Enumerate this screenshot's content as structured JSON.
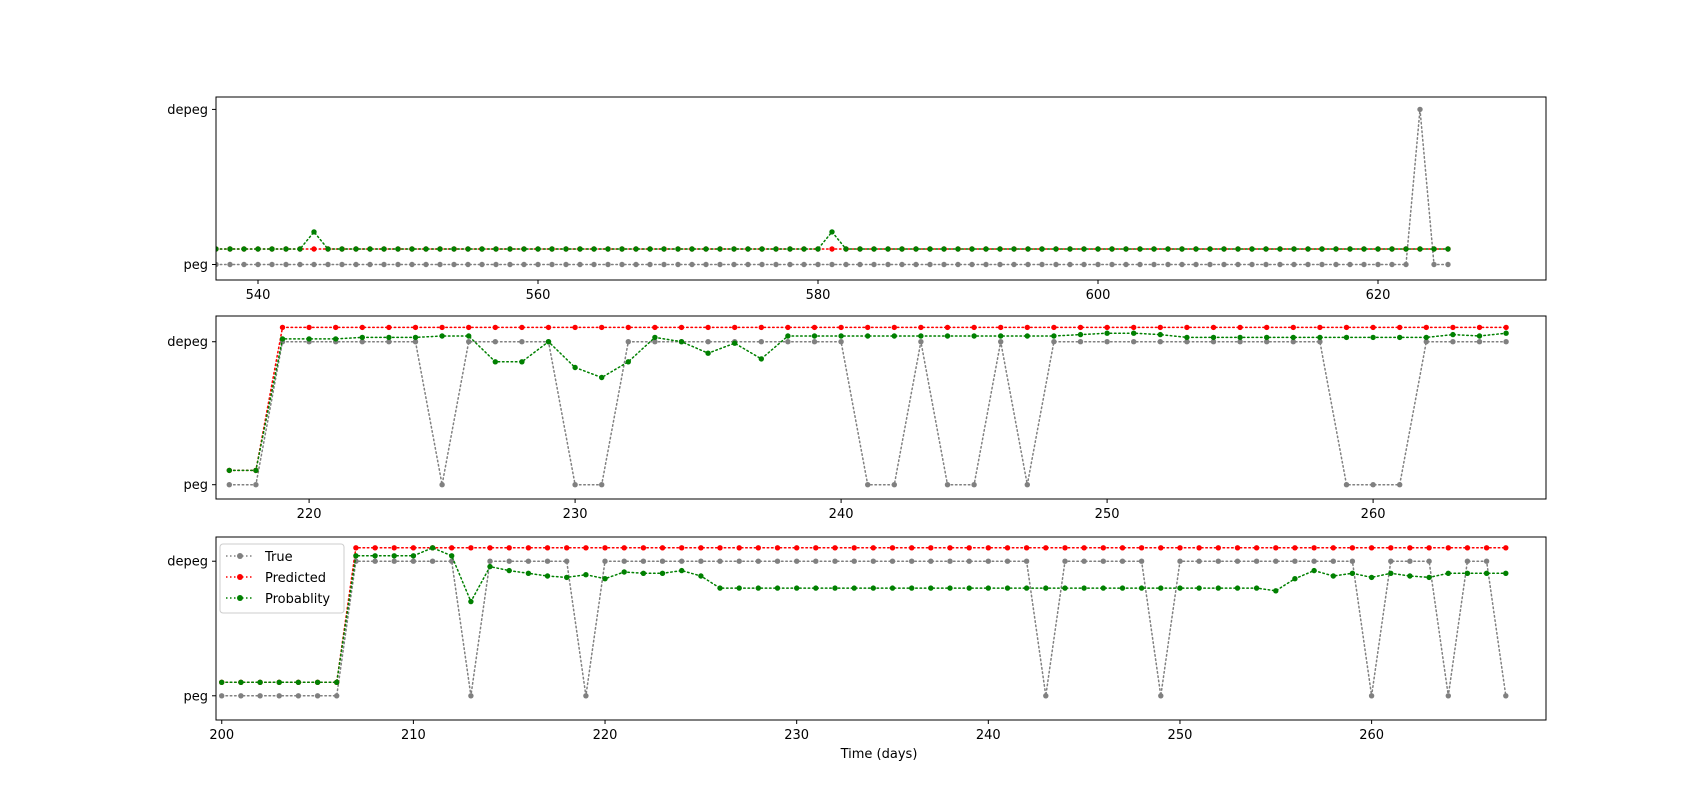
{
  "figure": {
    "xlabel": "Time (days)"
  },
  "legend": {
    "entries": [
      {
        "label": "True",
        "color": "#808080"
      },
      {
        "label": "Predicted",
        "color": "#ff0000"
      },
      {
        "label": "Probablity",
        "color": "#008000"
      }
    ],
    "placement": "upper-left of bottom panel"
  },
  "chart_data": [
    {
      "type": "line",
      "style": "dotted lines with circle markers",
      "xlim": [
        537,
        632
      ],
      "xticks": [
        540,
        560,
        580,
        600,
        620
      ],
      "ylim": [
        -0.1,
        1.08
      ],
      "yticks": [
        {
          "value": 0,
          "label": "peg"
        },
        {
          "value": 1,
          "label": "depeg"
        }
      ],
      "x": [
        537,
        538,
        539,
        540,
        541,
        542,
        543,
        544,
        545,
        546,
        547,
        548,
        549,
        550,
        551,
        552,
        553,
        554,
        555,
        556,
        557,
        558,
        559,
        560,
        561,
        562,
        563,
        564,
        565,
        566,
        567,
        568,
        569,
        570,
        571,
        572,
        573,
        574,
        575,
        576,
        577,
        578,
        579,
        580,
        581,
        582,
        583,
        584,
        585,
        586,
        587,
        588,
        589,
        590,
        591,
        592,
        593,
        594,
        595,
        596,
        597,
        598,
        599,
        600,
        601,
        602,
        603,
        604,
        605,
        606,
        607,
        608,
        609,
        610,
        611,
        612,
        613,
        614,
        615,
        616,
        617,
        618,
        619,
        620,
        621,
        622,
        623,
        624,
        625
      ],
      "series": [
        {
          "name": "True",
          "color": "#808080",
          "values": [
            0,
            0,
            0,
            0,
            0,
            0,
            0,
            0,
            0,
            0,
            0,
            0,
            0,
            0,
            0,
            0,
            0,
            0,
            0,
            0,
            0,
            0,
            0,
            0,
            0,
            0,
            0,
            0,
            0,
            0,
            0,
            0,
            0,
            0,
            0,
            0,
            0,
            0,
            0,
            0,
            0,
            0,
            0,
            0,
            0,
            0,
            0,
            0,
            0,
            0,
            0,
            0,
            0,
            0,
            0,
            0,
            0,
            0,
            0,
            0,
            0,
            0,
            0,
            0,
            0,
            0,
            0,
            0,
            0,
            0,
            0,
            0,
            0,
            0,
            0,
            0,
            0,
            0,
            0,
            0,
            0,
            0,
            0,
            0,
            0,
            0,
            1,
            0,
            0
          ]
        },
        {
          "name": "Predicted",
          "color": "#ff0000",
          "values": [
            0.1,
            0.1,
            0.1,
            0.1,
            0.1,
            0.1,
            0.1,
            0.1,
            0.1,
            0.1,
            0.1,
            0.1,
            0.1,
            0.1,
            0.1,
            0.1,
            0.1,
            0.1,
            0.1,
            0.1,
            0.1,
            0.1,
            0.1,
            0.1,
            0.1,
            0.1,
            0.1,
            0.1,
            0.1,
            0.1,
            0.1,
            0.1,
            0.1,
            0.1,
            0.1,
            0.1,
            0.1,
            0.1,
            0.1,
            0.1,
            0.1,
            0.1,
            0.1,
            0.1,
            0.1,
            0.1,
            0.1,
            0.1,
            0.1,
            0.1,
            0.1,
            0.1,
            0.1,
            0.1,
            0.1,
            0.1,
            0.1,
            0.1,
            0.1,
            0.1,
            0.1,
            0.1,
            0.1,
            0.1,
            0.1,
            0.1,
            0.1,
            0.1,
            0.1,
            0.1,
            0.1,
            0.1,
            0.1,
            0.1,
            0.1,
            0.1,
            0.1,
            0.1,
            0.1,
            0.1,
            0.1,
            0.1,
            0.1,
            0.1,
            0.1,
            0.1,
            0.1,
            0.1,
            0.1
          ]
        },
        {
          "name": "Probablity",
          "color": "#008000",
          "values": [
            0.1,
            0.1,
            0.1,
            0.1,
            0.1,
            0.1,
            0.1,
            0.21,
            0.1,
            0.1,
            0.1,
            0.1,
            0.1,
            0.1,
            0.1,
            0.1,
            0.1,
            0.1,
            0.1,
            0.1,
            0.1,
            0.1,
            0.1,
            0.1,
            0.1,
            0.1,
            0.1,
            0.1,
            0.1,
            0.1,
            0.1,
            0.1,
            0.1,
            0.1,
            0.1,
            0.1,
            0.1,
            0.1,
            0.1,
            0.1,
            0.1,
            0.1,
            0.1,
            0.1,
            0.21,
            0.1,
            0.1,
            0.1,
            0.1,
            0.1,
            0.1,
            0.1,
            0.1,
            0.1,
            0.1,
            0.1,
            0.1,
            0.1,
            0.1,
            0.1,
            0.1,
            0.1,
            0.1,
            0.1,
            0.1,
            0.1,
            0.1,
            0.1,
            0.1,
            0.1,
            0.1,
            0.1,
            0.1,
            0.1,
            0.1,
            0.1,
            0.1,
            0.1,
            0.1,
            0.1,
            0.1,
            0.1,
            0.1,
            0.1,
            0.1,
            0.1,
            0.1,
            0.1,
            0.1
          ]
        }
      ]
    },
    {
      "type": "line",
      "style": "dotted lines with circle markers",
      "xlim": [
        216.5,
        266.5
      ],
      "xticks": [
        220,
        230,
        240,
        250,
        260
      ],
      "ylim": [
        -0.1,
        1.18
      ],
      "yticks": [
        {
          "value": 0,
          "label": "peg"
        },
        {
          "value": 1,
          "label": "depeg"
        }
      ],
      "x": [
        217,
        218,
        219,
        220,
        221,
        222,
        223,
        224,
        225,
        226,
        227,
        228,
        229,
        230,
        231,
        232,
        233,
        234,
        235,
        236,
        237,
        238,
        239,
        240,
        241,
        242,
        243,
        244,
        245,
        246,
        247,
        248,
        249,
        250,
        251,
        252,
        253,
        254,
        255,
        256,
        257,
        258,
        259,
        260,
        261,
        262,
        263,
        264,
        265
      ],
      "series": [
        {
          "name": "True",
          "color": "#808080",
          "values": [
            0,
            0,
            1,
            1,
            1,
            1,
            1,
            1,
            0,
            1,
            1,
            1,
            1,
            0,
            0,
            1,
            1,
            1,
            1,
            1,
            1,
            1,
            1,
            1,
            0,
            0,
            1,
            0,
            0,
            1,
            0,
            1,
            1,
            1,
            1,
            1,
            1,
            1,
            1,
            1,
            1,
            1,
            0,
            0,
            0,
            1,
            1,
            1,
            1
          ]
        },
        {
          "name": "Predicted",
          "color": "#ff0000",
          "values": [
            0.1,
            0.1,
            1.1,
            1.1,
            1.1,
            1.1,
            1.1,
            1.1,
            1.1,
            1.1,
            1.1,
            1.1,
            1.1,
            1.1,
            1.1,
            1.1,
            1.1,
            1.1,
            1.1,
            1.1,
            1.1,
            1.1,
            1.1,
            1.1,
            1.1,
            1.1,
            1.1,
            1.1,
            1.1,
            1.1,
            1.1,
            1.1,
            1.1,
            1.1,
            1.1,
            1.1,
            1.1,
            1.1,
            1.1,
            1.1,
            1.1,
            1.1,
            1.1,
            1.1,
            1.1,
            1.1,
            1.1,
            1.1,
            1.1
          ]
        },
        {
          "name": "Probablity",
          "color": "#008000",
          "values": [
            0.1,
            0.1,
            1.02,
            1.02,
            1.02,
            1.03,
            1.03,
            1.03,
            1.04,
            1.04,
            0.86,
            0.86,
            1.0,
            0.82,
            0.75,
            0.86,
            1.03,
            1.0,
            0.92,
            0.99,
            0.88,
            1.04,
            1.04,
            1.04,
            1.04,
            1.04,
            1.04,
            1.04,
            1.04,
            1.04,
            1.04,
            1.04,
            1.05,
            1.06,
            1.06,
            1.05,
            1.03,
            1.03,
            1.03,
            1.03,
            1.03,
            1.03,
            1.03,
            1.03,
            1.03,
            1.03,
            1.05,
            1.04,
            1.06
          ]
        }
      ]
    },
    {
      "type": "line",
      "style": "dotted lines with circle markers",
      "xlim": [
        199.7,
        269.1
      ],
      "xticks": [
        200,
        210,
        220,
        230,
        240,
        250,
        260
      ],
      "ylim": [
        -0.18,
        1.18
      ],
      "yticks": [
        {
          "value": 0,
          "label": "peg"
        },
        {
          "value": 1,
          "label": "depeg"
        }
      ],
      "xlabel": "Time (days)",
      "x": [
        200,
        201,
        202,
        203,
        204,
        205,
        206,
        207,
        208,
        209,
        210,
        211,
        212,
        213,
        214,
        215,
        216,
        217,
        218,
        219,
        220,
        221,
        222,
        223,
        224,
        225,
        226,
        227,
        228,
        229,
        230,
        231,
        232,
        233,
        234,
        235,
        236,
        237,
        238,
        239,
        240,
        241,
        242,
        243,
        244,
        245,
        246,
        247,
        248,
        249,
        250,
        251,
        252,
        253,
        254,
        255,
        256,
        257,
        258,
        259,
        260,
        261,
        262,
        263,
        264,
        265,
        266,
        267
      ],
      "series": [
        {
          "name": "True",
          "color": "#808080",
          "values": [
            0,
            0,
            0,
            0,
            0,
            0,
            0,
            1,
            1,
            1,
            1,
            1,
            1,
            0,
            1,
            1,
            1,
            1,
            1,
            0,
            1,
            1,
            1,
            1,
            1,
            1,
            1,
            1,
            1,
            1,
            1,
            1,
            1,
            1,
            1,
            1,
            1,
            1,
            1,
            1,
            1,
            1,
            1,
            0,
            1,
            1,
            1,
            1,
            1,
            0,
            1,
            1,
            1,
            1,
            1,
            1,
            1,
            1,
            1,
            1,
            0,
            1,
            1,
            1,
            0,
            1,
            1,
            0
          ]
        },
        {
          "name": "Predicted",
          "color": "#ff0000",
          "values": [
            0.1,
            0.1,
            0.1,
            0.1,
            0.1,
            0.1,
            0.1,
            1.1,
            1.1,
            1.1,
            1.1,
            1.1,
            1.1,
            1.1,
            1.1,
            1.1,
            1.1,
            1.1,
            1.1,
            1.1,
            1.1,
            1.1,
            1.1,
            1.1,
            1.1,
            1.1,
            1.1,
            1.1,
            1.1,
            1.1,
            1.1,
            1.1,
            1.1,
            1.1,
            1.1,
            1.1,
            1.1,
            1.1,
            1.1,
            1.1,
            1.1,
            1.1,
            1.1,
            1.1,
            1.1,
            1.1,
            1.1,
            1.1,
            1.1,
            1.1,
            1.1,
            1.1,
            1.1,
            1.1,
            1.1,
            1.1,
            1.1,
            1.1,
            1.1,
            1.1,
            1.1,
            1.1,
            1.1,
            1.1,
            1.1,
            1.1,
            1.1,
            1.1
          ]
        },
        {
          "name": "Probablity",
          "color": "#008000",
          "values": [
            0.1,
            0.1,
            0.1,
            0.1,
            0.1,
            0.1,
            0.1,
            1.04,
            1.04,
            1.04,
            1.04,
            1.1,
            1.04,
            0.7,
            0.96,
            0.93,
            0.91,
            0.89,
            0.88,
            0.9,
            0.87,
            0.92,
            0.91,
            0.91,
            0.93,
            0.89,
            0.8,
            0.8,
            0.8,
            0.8,
            0.8,
            0.8,
            0.8,
            0.8,
            0.8,
            0.8,
            0.8,
            0.8,
            0.8,
            0.8,
            0.8,
            0.8,
            0.8,
            0.8,
            0.8,
            0.8,
            0.8,
            0.8,
            0.8,
            0.8,
            0.8,
            0.8,
            0.8,
            0.8,
            0.8,
            0.78,
            0.87,
            0.93,
            0.89,
            0.91,
            0.88,
            0.91,
            0.89,
            0.88,
            0.91,
            0.91,
            0.91,
            0.91
          ]
        }
      ]
    }
  ]
}
